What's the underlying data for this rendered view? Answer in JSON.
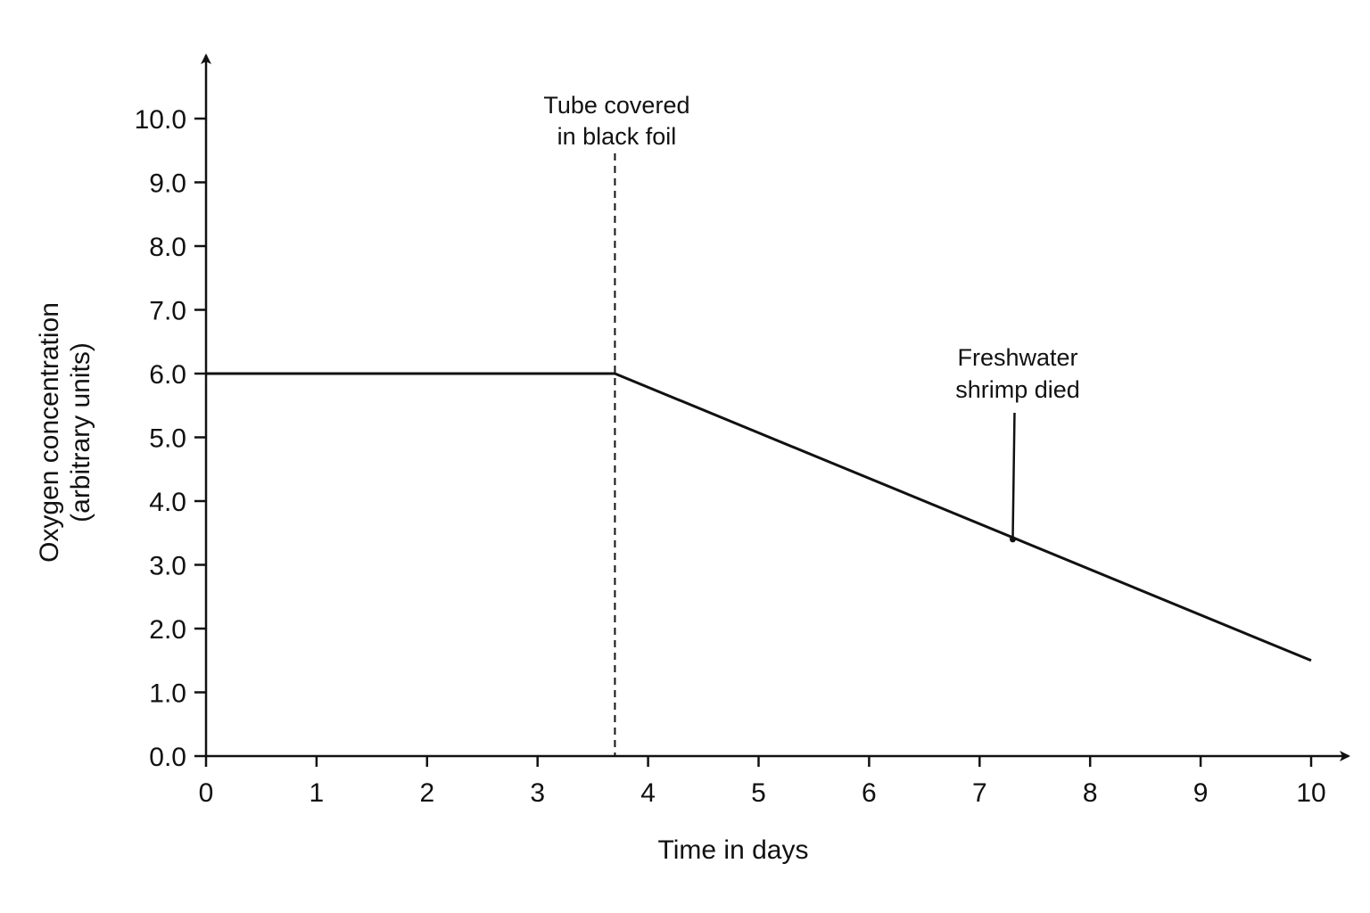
{
  "chart_data": {
    "type": "line",
    "title": "",
    "xlabel": "Time in days",
    "ylabel_lines": [
      "Oxygen concentration",
      "(arbitrary units)"
    ],
    "xlim": [
      0,
      10
    ],
    "ylim": [
      0,
      10
    ],
    "x_ticks": [
      0,
      1,
      2,
      3,
      4,
      5,
      6,
      7,
      8,
      9,
      10
    ],
    "x_tick_labels": [
      "0",
      "1",
      "2",
      "3",
      "4",
      "5",
      "6",
      "7",
      "8",
      "9",
      "10"
    ],
    "y_ticks": [
      0,
      1,
      2,
      3,
      4,
      5,
      6,
      7,
      8,
      9,
      10
    ],
    "y_tick_labels": [
      "0.0",
      "1.0",
      "2.0",
      "3.0",
      "4.0",
      "5.0",
      "6.0",
      "7.0",
      "8.0",
      "9.0",
      "10.0"
    ],
    "grid": false,
    "legend": "none",
    "series": [
      {
        "x": [
          0,
          3.7,
          10
        ],
        "y": [
          6.0,
          6.0,
          1.5
        ]
      }
    ],
    "annotations": [
      {
        "lines": [
          "Tube covered",
          "in black foil"
        ],
        "x": 3.7,
        "style": "dashed-vertical-line"
      },
      {
        "lines": [
          "Freshwater",
          "shrimp died"
        ],
        "x": 7.3,
        "y": 3.4,
        "style": "pointer"
      }
    ],
    "colors": {
      "line": "#111111",
      "axis": "#111111"
    }
  }
}
